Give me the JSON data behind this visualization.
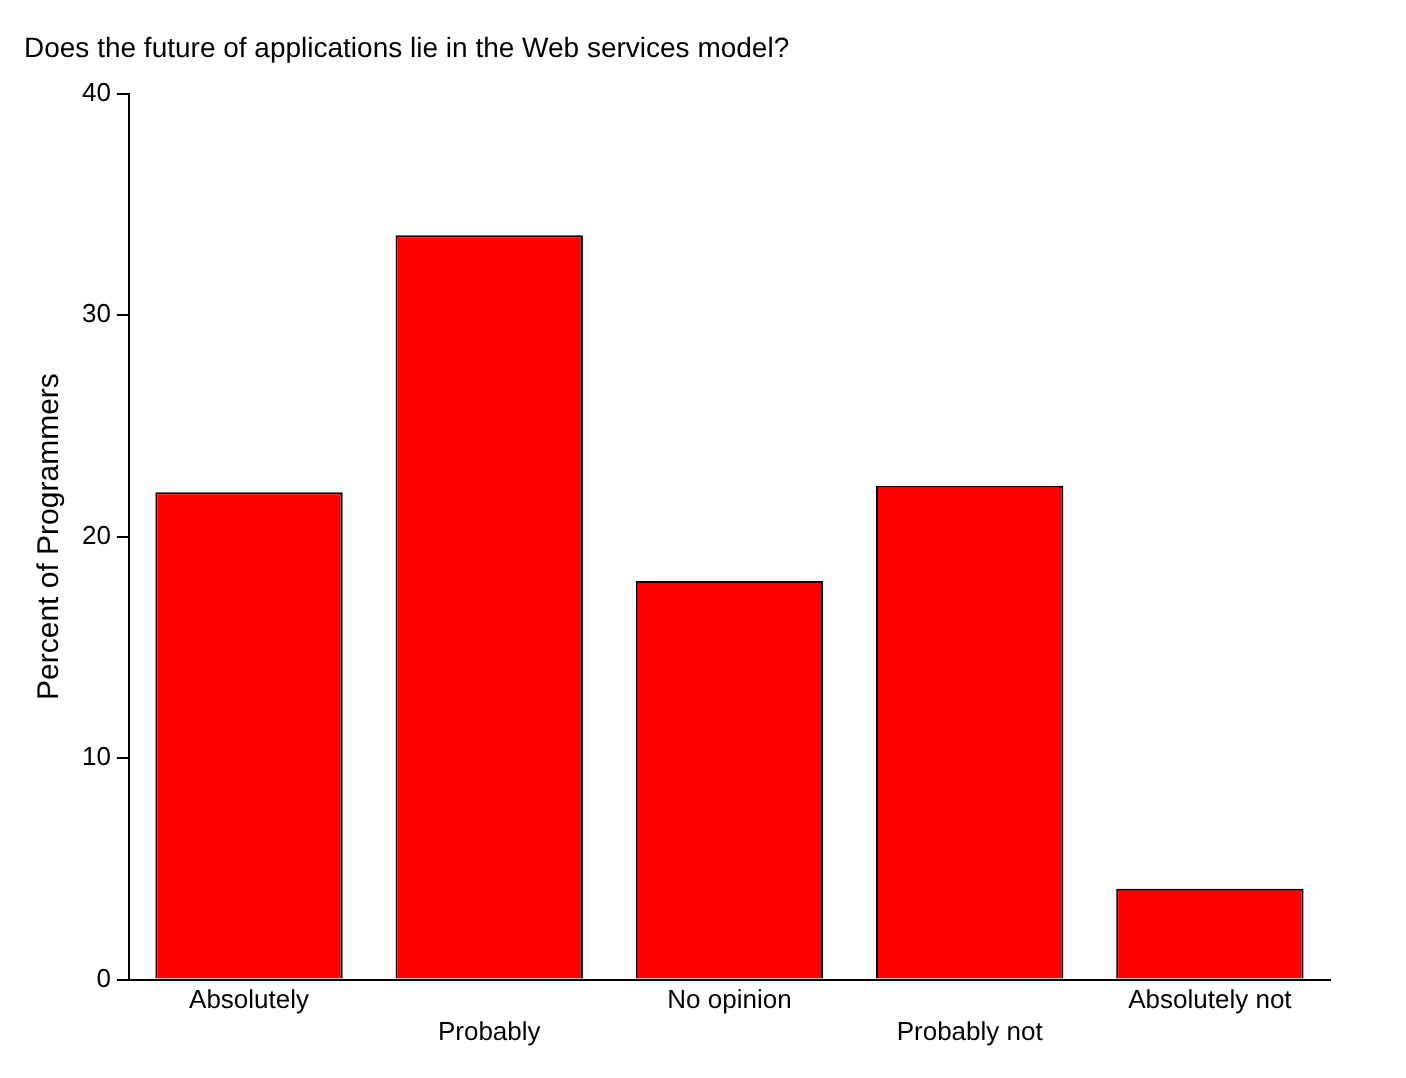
{
  "chart_data": {
    "type": "bar",
    "title": "Does the future of applications lie in the Web services model?",
    "ylabel": "Percent of Programmers",
    "categories": [
      "Absolutely",
      "Probably",
      "No opinion",
      "Probably not",
      "Absolutely not"
    ],
    "values": [
      22,
      33.6,
      18,
      22.3,
      4.1
    ],
    "color": "#ff0000",
    "ylim": [
      0,
      40
    ],
    "yticks": [
      0,
      10,
      20,
      30,
      40
    ],
    "grid": false
  }
}
